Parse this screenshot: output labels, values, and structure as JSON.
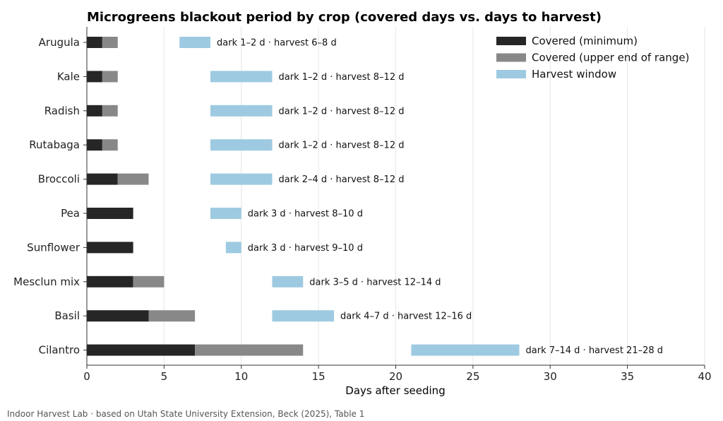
{
  "chart_data": {
    "type": "bar",
    "orientation": "horizontal",
    "title": "Microgreens blackout period by crop (covered days vs. days to harvest)",
    "xlabel": "Days after seeding",
    "ylabel": "",
    "xlim": [
      0,
      40
    ],
    "xticks": [
      0,
      5,
      10,
      15,
      20,
      25,
      30,
      35,
      40
    ],
    "grid": "vertical",
    "legend_position": "top-right",
    "series_names": [
      "Covered (minimum)",
      "Covered (upper end of range)",
      "Harvest window"
    ],
    "colors": {
      "covered_min": "#262626",
      "covered_upper": "#888888",
      "harvest": "#9ecae1"
    },
    "categories": [
      "Arugula",
      "Kale",
      "Radish",
      "Rutabaga",
      "Broccoli",
      "Pea",
      "Sunflower",
      "Mesclun mix",
      "Basil",
      "Cilantro"
    ],
    "crops": [
      {
        "name": "Arugula",
        "dark_min": 1,
        "dark_max": 2,
        "harvest_min": 6,
        "harvest_max": 8,
        "label": "dark 1–2 d · harvest 6–8 d"
      },
      {
        "name": "Kale",
        "dark_min": 1,
        "dark_max": 2,
        "harvest_min": 8,
        "harvest_max": 12,
        "label": "dark 1–2 d · harvest 8–12 d"
      },
      {
        "name": "Radish",
        "dark_min": 1,
        "dark_max": 2,
        "harvest_min": 8,
        "harvest_max": 12,
        "label": "dark 1–2 d · harvest 8–12 d"
      },
      {
        "name": "Rutabaga",
        "dark_min": 1,
        "dark_max": 2,
        "harvest_min": 8,
        "harvest_max": 12,
        "label": "dark 1–2 d · harvest 8–12 d"
      },
      {
        "name": "Broccoli",
        "dark_min": 2,
        "dark_max": 4,
        "harvest_min": 8,
        "harvest_max": 12,
        "label": "dark 2–4 d · harvest 8–12 d"
      },
      {
        "name": "Pea",
        "dark_min": 3,
        "dark_max": 3,
        "harvest_min": 8,
        "harvest_max": 10,
        "label": "dark 3 d · harvest 8–10 d"
      },
      {
        "name": "Sunflower",
        "dark_min": 3,
        "dark_max": 3,
        "harvest_min": 9,
        "harvest_max": 10,
        "label": "dark 3 d · harvest 9–10 d"
      },
      {
        "name": "Mesclun mix",
        "dark_min": 3,
        "dark_max": 5,
        "harvest_min": 12,
        "harvest_max": 14,
        "label": "dark 3–5 d · harvest 12–14 d"
      },
      {
        "name": "Basil",
        "dark_min": 4,
        "dark_max": 7,
        "harvest_min": 12,
        "harvest_max": 16,
        "label": "dark 4–7 d · harvest 12–16 d"
      },
      {
        "name": "Cilantro",
        "dark_min": 7,
        "dark_max": 14,
        "harvest_min": 21,
        "harvest_max": 28,
        "label": "dark 7–14 d · harvest 21–28 d"
      }
    ]
  },
  "footer": "Indoor Harvest Lab · based on Utah State University Extension, Beck (2025), Table 1"
}
